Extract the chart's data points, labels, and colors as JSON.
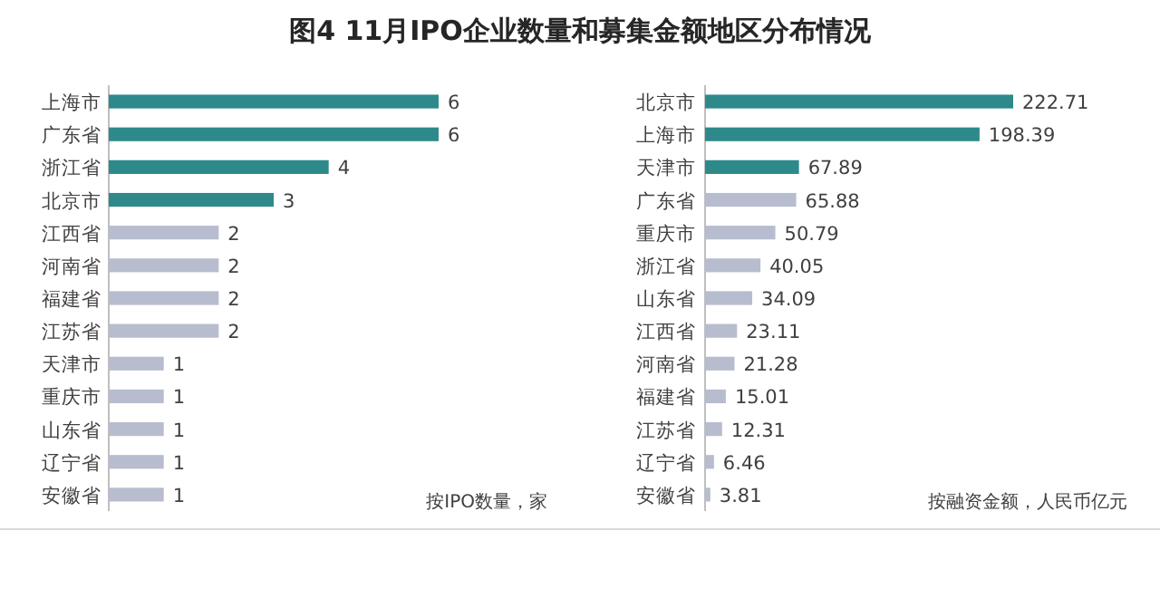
{
  "chart_data": [
    {
      "type": "bar",
      "orientation": "horizontal",
      "title": "图4  11月IPO企业数量和募集金额地区分布情况",
      "categories": [
        "上海市",
        "广东省",
        "浙江省",
        "北京市",
        "江西省",
        "河南省",
        "福建省",
        "江苏省",
        "天津市",
        "重庆市",
        "山东省",
        "辽宁省",
        "安徽省"
      ],
      "values": [
        6,
        6,
        4,
        3,
        2,
        2,
        2,
        2,
        1,
        1,
        1,
        1,
        1
      ],
      "colors": [
        "#2e8a8a",
        "#2e8a8a",
        "#2e8a8a",
        "#2e8a8a",
        "#b7bdcf",
        "#b7bdcf",
        "#b7bdcf",
        "#b7bdcf",
        "#b7bdcf",
        "#b7bdcf",
        "#b7bdcf",
        "#b7bdcf",
        "#b7bdcf"
      ],
      "data_labels": true,
      "annotations": [
        "按IPO数量，家"
      ]
    },
    {
      "type": "bar",
      "orientation": "horizontal",
      "categories": [
        "北京市",
        "上海市",
        "天津市",
        "广东省",
        "重庆市",
        "浙江省",
        "山东省",
        "江西省",
        "河南省",
        "福建省",
        "江苏省",
        "辽宁省",
        "安徽省"
      ],
      "values": [
        222.71,
        198.39,
        67.89,
        65.88,
        50.79,
        40.05,
        34.09,
        23.11,
        21.28,
        15.01,
        12.31,
        6.46,
        3.81
      ],
      "colors": [
        "#2e8a8a",
        "#2e8a8a",
        "#2e8a8a",
        "#b7bdcf",
        "#b7bdcf",
        "#b7bdcf",
        "#b7bdcf",
        "#b7bdcf",
        "#b7bdcf",
        "#b7bdcf",
        "#b7bdcf",
        "#b7bdcf",
        "#b7bdcf"
      ],
      "data_labels": true,
      "annotations": [
        "按融资金额，人民币亿元"
      ]
    }
  ]
}
